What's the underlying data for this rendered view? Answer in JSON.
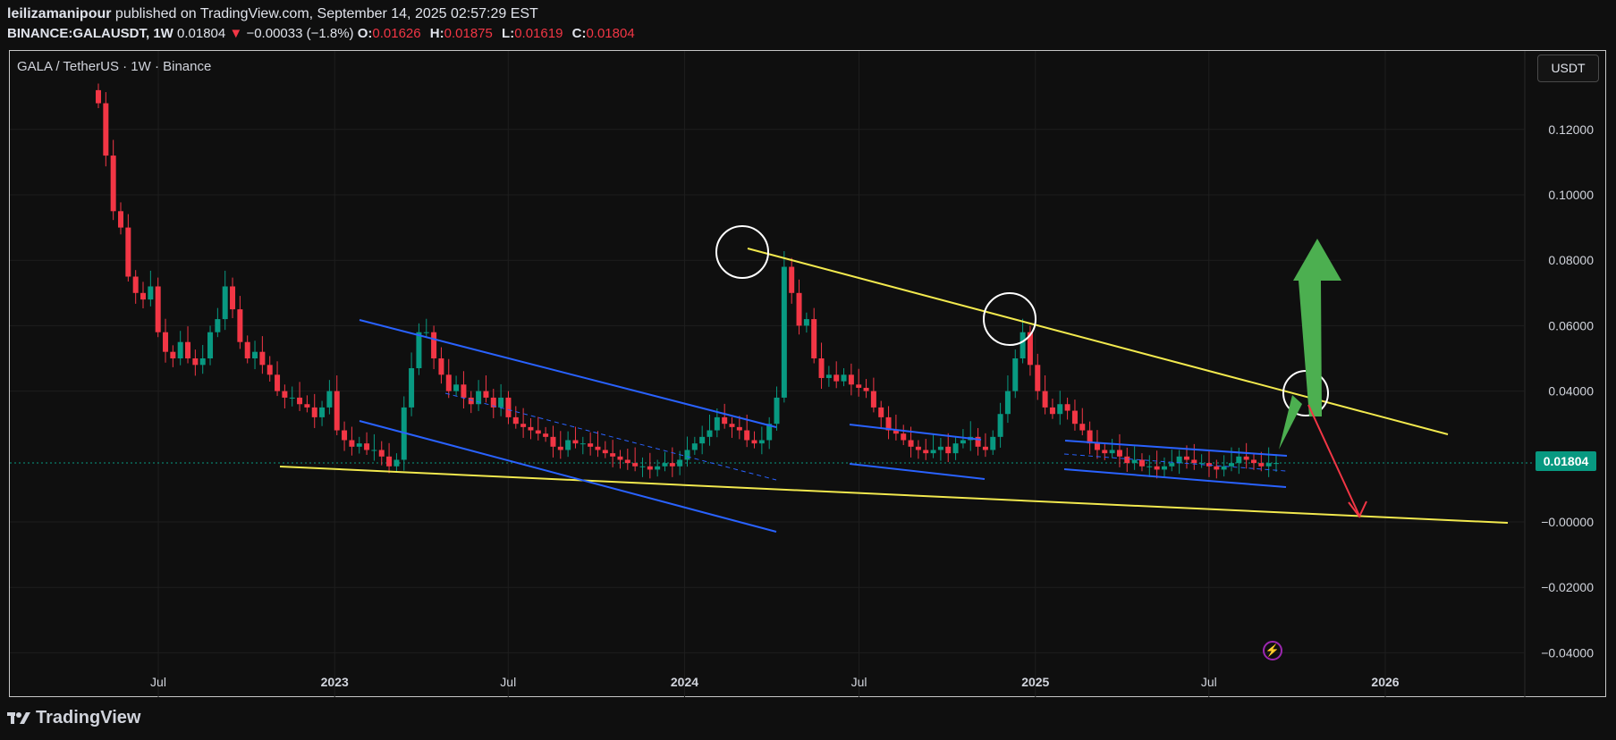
{
  "header": {
    "author": "leilizamanipour",
    "published": "published on TradingView.com, September 14, 2025 02:57:29 EST",
    "symbol": "BINANCE:GALAUSDT, 1W",
    "last": "0.01804",
    "change": "−0.00033 (−1.8%)",
    "open_label": "O:",
    "open": "0.01626",
    "high_label": "H:",
    "high": "0.01875",
    "low_label": "L:",
    "low": "0.01619",
    "close_label": "C:",
    "close": "0.01804"
  },
  "legend": "GALA / TetherUS · 1W · Binance",
  "currency_button": "USDT",
  "current_price_tag": "0.01804",
  "footer": {
    "brand": "TradingView"
  },
  "colors": {
    "up": "#089981",
    "down": "#f23645",
    "trendline": "#f2e94e",
    "channel": "#2962ff",
    "arrow_up": "#4caf50",
    "arrow_down": "#f23645"
  },
  "chart_data": {
    "type": "candlestick",
    "title": "GALA / TetherUS · 1W · Binance",
    "ylim": [
      -0.045,
      0.13
    ],
    "y_ticks": [
      {
        "label": "0.12000",
        "value": 0.12
      },
      {
        "label": "0.10000",
        "value": 0.1
      },
      {
        "label": "0.08000",
        "value": 0.08
      },
      {
        "label": "0.06000",
        "value": 0.06
      },
      {
        "label": "0.04000",
        "value": 0.04
      },
      {
        "label": "−0.00000",
        "value": 0.0
      },
      {
        "label": "−0.02000",
        "value": -0.02
      },
      {
        "label": "−0.04000",
        "value": -0.04
      }
    ],
    "x_ticks": [
      {
        "label": "Jul",
        "date": "2022-07-01",
        "bold": false
      },
      {
        "label": "2023",
        "date": "2023-01-01",
        "bold": true
      },
      {
        "label": "Jul",
        "date": "2023-07-01",
        "bold": false
      },
      {
        "label": "2024",
        "date": "2024-01-01",
        "bold": true
      },
      {
        "label": "Jul",
        "date": "2024-07-01",
        "bold": false
      },
      {
        "label": "2025",
        "date": "2025-01-01",
        "bold": true
      },
      {
        "label": "Jul",
        "date": "2025-07-01",
        "bold": false
      },
      {
        "label": "2026",
        "date": "2026-01-01",
        "bold": true
      }
    ],
    "weekly_closes_estimated": [
      0.128,
      0.112,
      0.095,
      0.09,
      0.075,
      0.07,
      0.068,
      0.072,
      0.058,
      0.052,
      0.05,
      0.055,
      0.05,
      0.048,
      0.05,
      0.058,
      0.062,
      0.072,
      0.065,
      0.055,
      0.05,
      0.052,
      0.048,
      0.045,
      0.04,
      0.038,
      0.038,
      0.036,
      0.035,
      0.032,
      0.035,
      0.04,
      0.028,
      0.025,
      0.023,
      0.024,
      0.022,
      0.022,
      0.02,
      0.017,
      0.019,
      0.035,
      0.047,
      0.058,
      0.058,
      0.05,
      0.045,
      0.04,
      0.042,
      0.038,
      0.036,
      0.04,
      0.038,
      0.035,
      0.038,
      0.032,
      0.03,
      0.029,
      0.028,
      0.027,
      0.026,
      0.023,
      0.022,
      0.025,
      0.024,
      0.024,
      0.023,
      0.022,
      0.021,
      0.02,
      0.019,
      0.018,
      0.017,
      0.017,
      0.016,
      0.017,
      0.018,
      0.017,
      0.019,
      0.022,
      0.024,
      0.026,
      0.028,
      0.032,
      0.03,
      0.029,
      0.028,
      0.025,
      0.024,
      0.025,
      0.03,
      0.038,
      0.078,
      0.07,
      0.06,
      0.062,
      0.05,
      0.044,
      0.045,
      0.043,
      0.045,
      0.042,
      0.041,
      0.04,
      0.035,
      0.032,
      0.028,
      0.027,
      0.025,
      0.023,
      0.022,
      0.021,
      0.022,
      0.023,
      0.021,
      0.024,
      0.025,
      0.026,
      0.023,
      0.022,
      0.026,
      0.033,
      0.04,
      0.05,
      0.058,
      0.048,
      0.04,
      0.035,
      0.033,
      0.036,
      0.034,
      0.03,
      0.028,
      0.024,
      0.022,
      0.021,
      0.022,
      0.02,
      0.018,
      0.019,
      0.017,
      0.017,
      0.016,
      0.017,
      0.018,
      0.02,
      0.019,
      0.018,
      0.018,
      0.017,
      0.016,
      0.017,
      0.018,
      0.02,
      0.019,
      0.018,
      0.017,
      0.018,
      0.018
    ],
    "current_price": 0.01804,
    "grid": true
  }
}
